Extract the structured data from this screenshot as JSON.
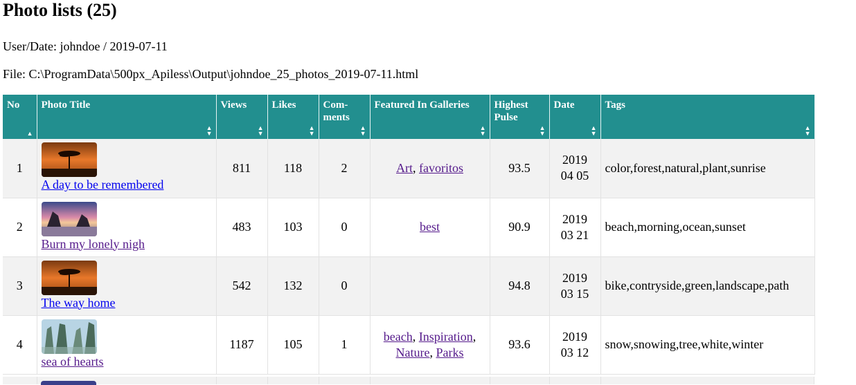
{
  "page_title": "Photo lists (25)",
  "user_date": "User/Date: johndoe / 2019-07-11",
  "file_path": "File: C:\\ProgramData\\500px_Apiless\\Output\\johndoe_25_photos_2019-07-11.html",
  "colors": {
    "header_bg": "#228f8f",
    "odd_row": "#f2f2f2",
    "link": "#0000ee",
    "visited_link": "#551a8b"
  },
  "columns": [
    {
      "label": "No",
      "sort_icon": "sort-up-icon"
    },
    {
      "label": "Photo Title",
      "sort_icon": "sort-both-icon"
    },
    {
      "label": "Views",
      "sort_icon": "sort-both-icon"
    },
    {
      "label": "Likes",
      "sort_icon": "sort-both-icon"
    },
    {
      "label": "Com-ments",
      "sort_icon": "sort-both-icon"
    },
    {
      "label": "Featured In Galleries",
      "sort_icon": "sort-both-icon"
    },
    {
      "label": "Highest Pulse",
      "sort_icon": "sort-both-icon"
    },
    {
      "label": "Date",
      "sort_icon": "sort-both-icon"
    },
    {
      "label": "Tags",
      "sort_icon": "sort-both-icon"
    }
  ],
  "rows": [
    {
      "no": "1",
      "thumb": "tree-sunset-thumbnail",
      "title": "A day to be remembered",
      "title_visited": false,
      "views": "811",
      "likes": "118",
      "comments": "2",
      "galleries": [
        "Art",
        "favoritos"
      ],
      "pulse": "93.5",
      "date_year": "2019",
      "date_md": "04 05",
      "tags": "color,forest,natural,plant,sunrise"
    },
    {
      "no": "2",
      "thumb": "beach-rocks-thumbnail",
      "title": "Burn my lonely nigh",
      "title_visited": true,
      "views": "483",
      "likes": "103",
      "comments": "0",
      "galleries": [
        "best"
      ],
      "pulse": "90.9",
      "date_year": "2019",
      "date_md": "03 21",
      "tags": "beach,morning,ocean,sunset"
    },
    {
      "no": "3",
      "thumb": "tree-sunset-thumbnail",
      "title": "The way home",
      "title_visited": false,
      "views": "542",
      "likes": "132",
      "comments": "0",
      "galleries": [],
      "pulse": "94.8",
      "date_year": "2019",
      "date_md": "03 15",
      "tags": "bike,contryside,green,landscape,path"
    },
    {
      "no": "4",
      "thumb": "mountains-thumbnail",
      "title": "sea of hearts",
      "title_visited": true,
      "views": "1187",
      "likes": "105",
      "comments": "1",
      "galleries": [
        "beach",
        "Inspiration",
        "Nature",
        "Parks"
      ],
      "pulse": "93.6",
      "date_year": "2019",
      "date_md": "03 12",
      "tags": "snow,snowing,tree,white,winter"
    }
  ]
}
